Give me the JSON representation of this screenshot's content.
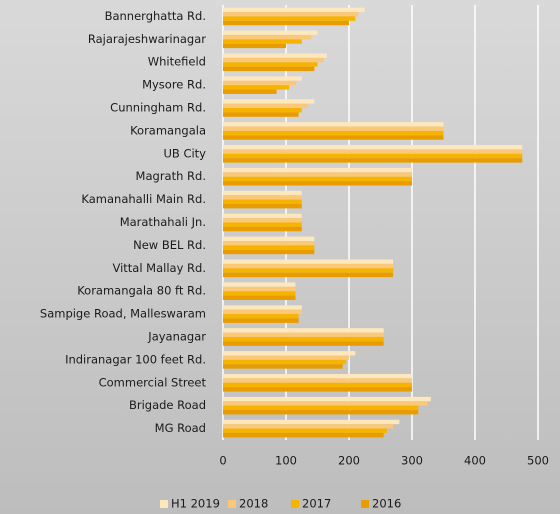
{
  "chart_data": {
    "type": "hbar",
    "categories": [
      "Bannerghatta Rd.",
      "Rajarajeshwarinagar",
      "Whitefield",
      "Mysore Rd.",
      "Cunningham Rd.",
      "Koramangala",
      "UB City",
      "Magrath Rd.",
      "Kamanahalli Main Rd.",
      "Marathahali Jn.",
      "New BEL Rd.",
      "Vittal Mallay Rd.",
      "Koramangala 80 ft Rd.",
      "Sampige Road, Malleswaram",
      "Jayanagar",
      "Indiranagar 100 feet Rd.",
      "Commercial Street",
      "Brigade Road",
      "MG Road"
    ],
    "series": [
      {
        "name": "H1 2019",
        "color": "#fde7bd",
        "values": [
          225,
          150,
          165,
          125,
          145,
          350,
          475,
          300,
          125,
          125,
          145,
          270,
          115,
          125,
          255,
          210,
          300,
          330,
          280
        ]
      },
      {
        "name": "2018",
        "color": "#f9c878",
        "values": [
          215,
          140,
          160,
          115,
          135,
          350,
          475,
          300,
          125,
          125,
          145,
          270,
          115,
          125,
          255,
          200,
          300,
          325,
          270
        ]
      },
      {
        "name": "2017",
        "color": "#f6b400",
        "values": [
          210,
          125,
          150,
          105,
          125,
          350,
          475,
          300,
          125,
          125,
          145,
          270,
          115,
          120,
          255,
          195,
          300,
          310,
          260
        ]
      },
      {
        "name": "2016",
        "color": "#e89c00",
        "values": [
          200,
          100,
          145,
          85,
          120,
          350,
          475,
          300,
          125,
          125,
          145,
          270,
          115,
          120,
          255,
          190,
          300,
          310,
          255
        ]
      }
    ],
    "xlim": [
      0,
      500
    ],
    "xticks": [
      0,
      100,
      200,
      300,
      400,
      500
    ],
    "grid": true,
    "legend": "bottom"
  }
}
